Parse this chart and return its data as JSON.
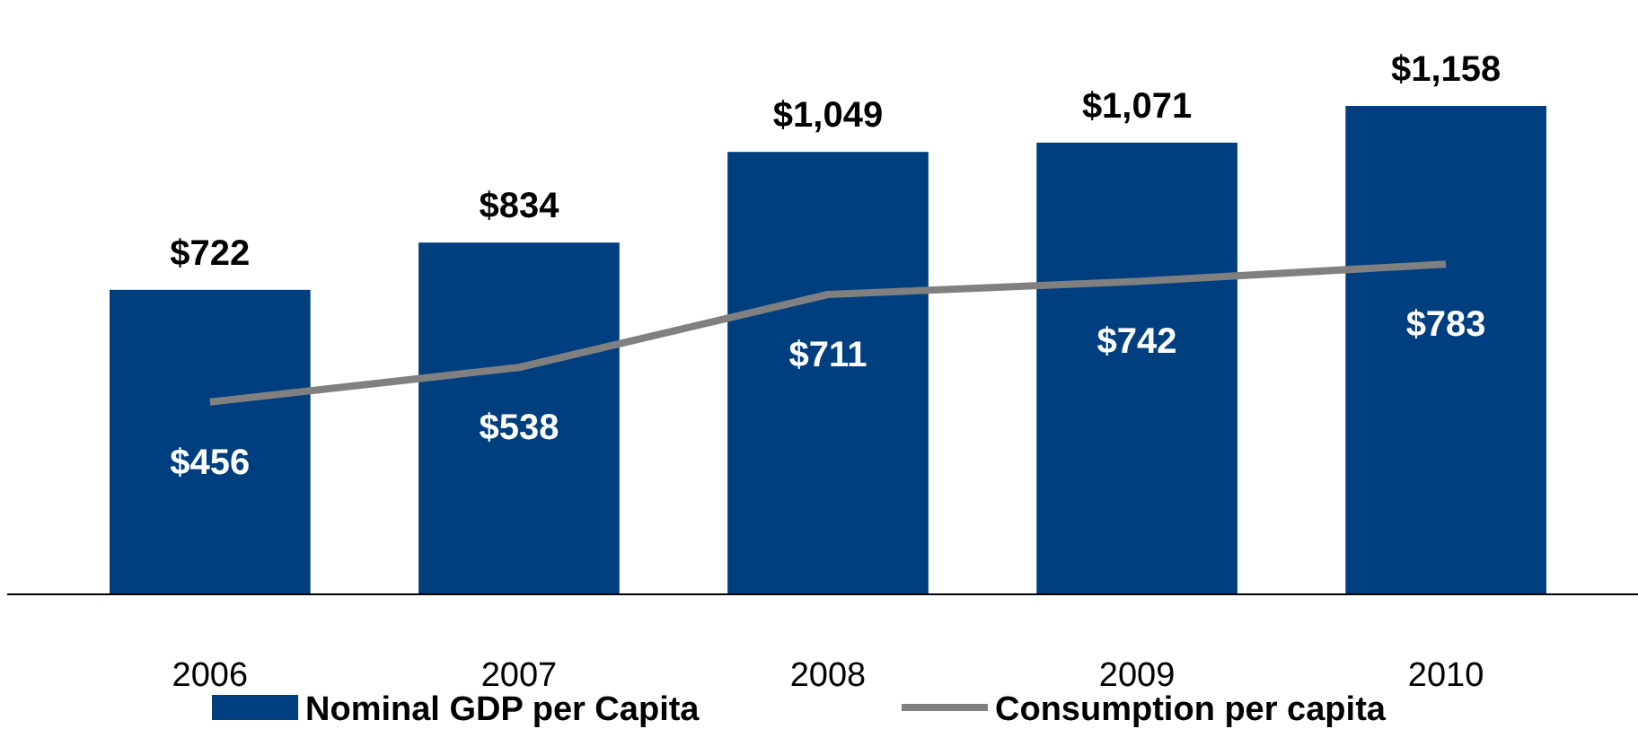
{
  "chart_data": {
    "type": "bar",
    "categories": [
      "2006",
      "2007",
      "2008",
      "2009",
      "2010"
    ],
    "series": [
      {
        "name": "Nominal GDP per Capita",
        "color": "#003f7f",
        "values": [
          722,
          834,
          1049,
          1071,
          1158
        ],
        "value_labels": [
          "$722",
          "$834",
          "$1,049",
          "$1,071",
          "$1,158"
        ]
      },
      {
        "name": "Consumption per capita",
        "type": "line",
        "color": "#808080",
        "values": [
          456,
          538,
          711,
          742,
          783
        ],
        "value_labels": [
          "$456",
          "$538",
          "$711",
          "$742",
          "$783"
        ]
      }
    ],
    "tick_labels": "x",
    "grid": false,
    "legend": "bottom",
    "data_labels": true
  }
}
